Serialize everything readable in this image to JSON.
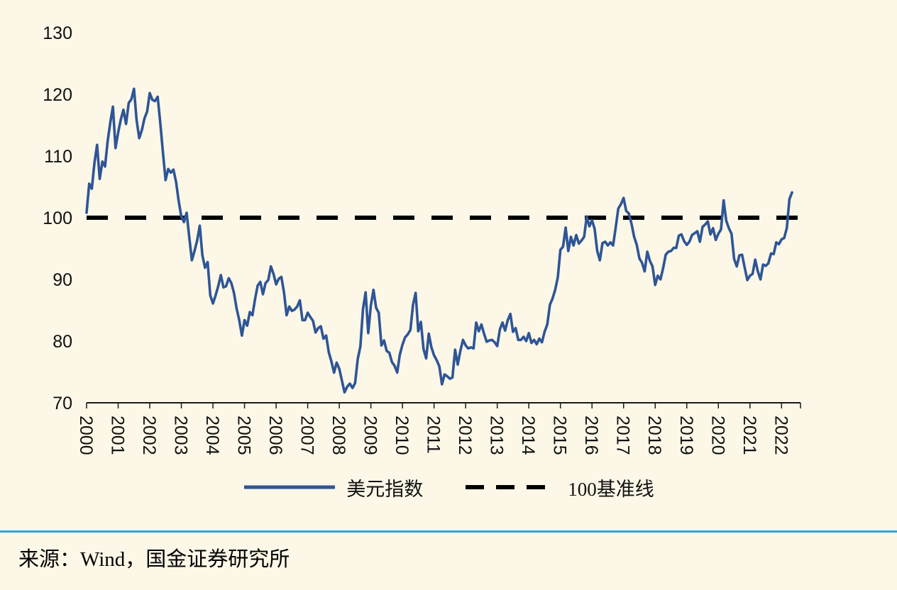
{
  "figure": {
    "source_note": "来源：Wind，国金证券研究所"
  },
  "legend": [
    {
      "label": "美元指数",
      "color": "#2e5596",
      "style": "solid"
    },
    {
      "label": "100基准线",
      "color": "#000000",
      "style": "dashed"
    }
  ],
  "colors": {
    "background": "#fcf7e7",
    "divider": "#2aa7df",
    "series": "#2e5596",
    "baseline": "#000000",
    "axis": "#1a1a1a"
  },
  "chart_data": {
    "type": "line",
    "title": "",
    "xlabel": "",
    "ylabel": "",
    "grid": false,
    "legend_position": "bottom",
    "ylim": [
      70,
      130
    ],
    "yticks": [
      70,
      80,
      90,
      100,
      110,
      120,
      130
    ],
    "xlim": [
      2000,
      2022.6
    ],
    "xticks": [
      2000,
      2001,
      2002,
      2003,
      2004,
      2005,
      2006,
      2007,
      2008,
      2009,
      2010,
      2011,
      2012,
      2013,
      2014,
      2015,
      2016,
      2017,
      2018,
      2019,
      2020,
      2021,
      2022
    ],
    "series": [
      {
        "name": "美元指数",
        "color": "#2e5596",
        "frequency": "monthly",
        "x_start": 2000,
        "x_step_years": 0.0833333,
        "values": [
          100.8,
          105.5,
          104.7,
          108.9,
          111.8,
          106.3,
          109.1,
          108.3,
          112.4,
          115.4,
          118.0,
          111.3,
          113.8,
          115.9,
          117.5,
          115.2,
          118.6,
          119.2,
          120.9,
          115.8,
          112.9,
          114.2,
          116.1,
          117.2,
          120.2,
          119.1,
          118.9,
          119.6,
          115.3,
          110.6,
          106.1,
          107.9,
          107.3,
          107.8,
          105.8,
          102.7,
          100.2,
          99.3,
          100.8,
          96.8,
          93.1,
          94.6,
          96.3,
          98.7,
          93.9,
          91.9,
          92.8,
          87.4,
          86.1,
          87.4,
          88.9,
          90.7,
          88.7,
          88.9,
          90.2,
          89.4,
          87.8,
          85.3,
          83.4,
          80.9,
          83.4,
          82.5,
          84.7,
          84.2,
          86.8,
          89.0,
          89.6,
          87.6,
          89.4,
          89.9,
          92.1,
          90.9,
          89.2,
          90.1,
          90.4,
          87.9,
          84.2,
          85.6,
          84.9,
          85.1,
          85.6,
          86.6,
          83.4,
          83.4,
          84.6,
          83.9,
          83.3,
          81.4,
          82.1,
          82.4,
          80.4,
          80.9,
          78.2,
          76.7,
          74.9,
          76.5,
          75.5,
          73.6,
          71.7,
          72.6,
          73.1,
          72.4,
          73.2,
          77.1,
          79.1,
          85.2,
          87.9,
          81.3,
          85.8,
          88.3,
          85.4,
          84.6,
          79.3,
          80.1,
          78.4,
          78.1,
          76.6,
          76.0,
          74.9,
          77.8,
          79.4,
          80.6,
          81.1,
          81.8,
          85.9,
          87.8,
          81.6,
          83.1,
          78.7,
          77.2,
          81.2,
          79.0,
          77.7,
          76.9,
          75.9,
          73.0,
          74.6,
          74.3,
          73.9,
          74.1,
          78.6,
          76.2,
          78.4,
          80.2,
          79.3,
          78.8,
          79.0,
          78.8,
          83.0,
          81.6,
          82.7,
          81.2,
          79.9,
          80.1,
          80.2,
          79.8,
          79.2,
          81.9,
          83.0,
          81.7,
          83.4,
          84.4,
          81.5,
          82.1,
          80.2,
          80.2,
          80.7,
          80.0,
          81.3,
          79.7,
          80.2,
          79.5,
          80.4,
          79.8,
          81.5,
          82.7,
          85.9,
          86.9,
          88.3,
          90.3,
          94.8,
          95.3,
          98.4,
          94.6,
          96.9,
          95.5,
          97.2,
          95.8,
          96.3,
          96.9,
          100.2,
          98.6,
          99.6,
          98.2,
          94.6,
          93.1,
          95.9,
          96.1,
          95.5,
          96.0,
          95.5,
          98.4,
          101.5,
          102.2,
          103.2,
          101.1,
          100.7,
          99.0,
          96.9,
          95.6,
          93.4,
          92.7,
          91.3,
          94.5,
          93.0,
          92.1,
          89.1,
          90.6,
          90.0,
          91.8,
          94.0,
          94.5,
          94.6,
          95.1,
          95.1,
          97.1,
          97.3,
          96.2,
          95.6,
          96.1,
          97.2,
          97.5,
          97.8,
          96.1,
          98.5,
          98.9,
          99.4,
          97.3,
          98.3,
          96.4,
          97.4,
          98.1,
          102.8,
          99.5,
          98.3,
          97.4,
          93.3,
          92.1,
          93.9,
          94.0,
          91.9,
          89.9,
          90.6,
          90.9,
          93.2,
          91.3,
          90.0,
          92.4,
          92.2,
          92.6,
          94.2,
          94.1,
          96.0,
          95.7,
          96.5,
          96.7,
          98.3,
          103.0,
          104.1
        ]
      },
      {
        "name": "100基准线",
        "type": "hline",
        "y": 100,
        "color": "#000000",
        "style": "dashed"
      }
    ]
  }
}
